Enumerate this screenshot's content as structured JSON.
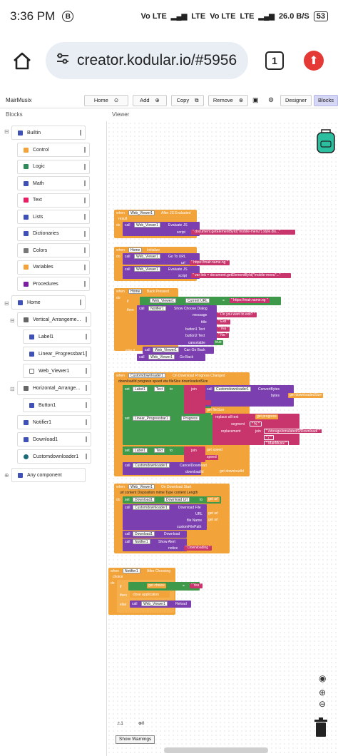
{
  "status": {
    "time": "3:36 PM",
    "b_badge": "B",
    "net1": "Vo LTE",
    "net2": "LTE",
    "net3": "Vo LTE",
    "net4": "LTE",
    "speed": "26.0 B/S",
    "battery": "53"
  },
  "browser": {
    "url": "creator.kodular.io/#5956",
    "tab_count": "1"
  },
  "app": {
    "project": "MairMusix",
    "toolbar": {
      "home": "Home",
      "add": "Add",
      "copy": "Copy",
      "remove": "Remove",
      "designer": "Designer",
      "blocks": "Blocks"
    },
    "blocks_header": "Blocks",
    "viewer_header": "Viewer"
  },
  "tree": {
    "builtin": "Builtin",
    "builtins": [
      {
        "label": "Control",
        "color": "#f2a33a"
      },
      {
        "label": "Logic",
        "color": "#2e8b57"
      },
      {
        "label": "Math",
        "color": "#3f51b5"
      },
      {
        "label": "Text",
        "color": "#e91e63"
      },
      {
        "label": "Lists",
        "color": "#3f51b5"
      },
      {
        "label": "Dictionaries",
        "color": "#3f51b5"
      },
      {
        "label": "Colors",
        "color": "#777777"
      },
      {
        "label": "Variables",
        "color": "#f2a33a"
      },
      {
        "label": "Procedures",
        "color": "#7b1fa2"
      }
    ],
    "home": "Home",
    "vertical": "Vertical_Arrangeme...",
    "label1": "Label1",
    "linear": "Linear_Progressbar1",
    "webviewer": "Web_Viewer1",
    "horizontal": "Horizontal_Arrange...",
    "button1": "Button1",
    "notifier": "Notifier1",
    "download": "Download1",
    "customdl": "Customdownloader1",
    "any": "Any component"
  },
  "blocks": {
    "b1": {
      "when": "when",
      "comp": "Web_Viewer1",
      "event": "After JS Evaluated",
      "param": "result",
      "do": "do",
      "call": "call",
      "method_comp": "Web_Viewer1",
      "method": "Evaluate JS",
      "arg": "script",
      "value": "\" document.getElementById(\"mobile-menu\").style.dis...\""
    },
    "b2": {
      "when": "when",
      "comp": "Home",
      "event": "Initialize",
      "do": "do",
      "call": "call",
      "c1": "Web_Viewer1",
      "m1": "Go To URL",
      "a1": "url",
      "v1": "\" https://mair.name.ng \"",
      "c2": "Web_Viewer1",
      "m2": "Evaluate JS",
      "a2": "script",
      "v2": "\" var link = document.getElementById(\"mobile-menu\"...\""
    },
    "b3": {
      "when": "when",
      "comp": "Home",
      "event": "Back Pressed",
      "do": "do",
      "if": "if",
      "then": "then",
      "else_if": "else if",
      "call": "call",
      "c1": "Web_Viewer1",
      "p1": "Current URL",
      "eq": "=",
      "v1": "\" https://mair.name.ng \"",
      "notifier": "Notifier1",
      "m1": "Show Choose Dialog",
      "message": "message",
      "mv": "\" Do you want to exit? \"",
      "title": "title",
      "tv": "\" Exit \"",
      "b1t": "button1 Text",
      "b1v": "\" Yes \"",
      "b2t": "button2 Text",
      "b2v": "\" No \"",
      "cancelable": "cancelable",
      "cv": "true",
      "c2": "Web_Viewer1",
      "m2": "Can Go Back",
      "c3": "Web_Viewer1",
      "m3": "Go Back"
    },
    "b4": {
      "when": "when",
      "comp": "Customdownloader1",
      "event": "On Download Progress Changed",
      "params": "downloadId   progress   speed   eta   fileSize   downloadedSize",
      "set": "set",
      "to": "to",
      "label1": "Label1",
      "text": "Text",
      "join": "join",
      "call": "call",
      "cd": "Customdownloader1",
      "convert": "ConvertBytes",
      "bytes": "bytes",
      "get": "get",
      "dsize": "downloadedSize",
      "fsize": "fileSize",
      "linear": "Linear_Progressbar1",
      "progress": "Progress",
      "replace": "replace all text",
      "segment": "segment",
      "replacement": "replacement",
      "pv": "progress",
      "pct": "\" % \"",
      "path": "\" /storage/emulated/0/Download/ \"",
      "slash": "\" / \"",
      "mair": "\" MairMusix \"",
      "speed": "speed",
      "sv": "speed",
      "cancel": "CancelDownload",
      "did": "downloadId",
      "didv": "downloadId"
    },
    "b5": {
      "when": "when",
      "comp": "Web_Viewer1",
      "event": "On Download Start",
      "params": "url   content Disposition   mime Type   content Length",
      "do": "do",
      "set": "set",
      "dl": "Download1",
      "dlurl": "Download Url",
      "to": "to",
      "get": "get",
      "url": "url",
      "call": "call",
      "cd": "Customdownloader1",
      "dfile": "Download File",
      "url_arg": "URL",
      "file_name": "file Name",
      "custom_path": "customFilePath",
      "m2": "Download",
      "notifier": "Notifier1",
      "alert": "Show Alert",
      "notice": "notice",
      "nv": "\" Downloading \""
    },
    "b6": {
      "when": "when",
      "comp": "Notifier1",
      "event": "After Choosing",
      "param": "choice",
      "do": "do",
      "if": "if",
      "then": "then",
      "get": "get",
      "choice": "choice",
      "eq": "=",
      "yes": "\" Yes \"",
      "close": "close application",
      "else": "else",
      "call": "call",
      "c": "Web_Viewer1",
      "reload": "Reload"
    }
  },
  "warnings": {
    "warn_count": "1",
    "err_count": "0",
    "button": "Show Warnings"
  }
}
